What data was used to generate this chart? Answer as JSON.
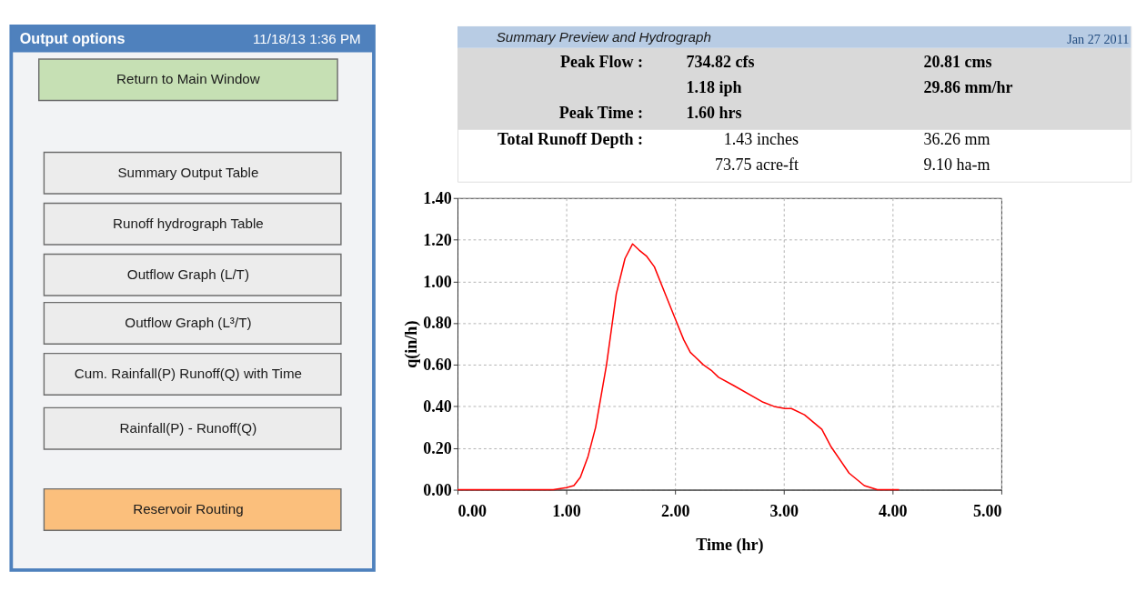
{
  "chart_data": [
    {
      "type": "other",
      "title": "Output options",
      "subtitle": "11/18/13 1:36 PM",
      "categories": [
        "Return to Main Window",
        "Summary Output Table",
        "Runoff hydrograph Table",
        "Outflow Graph (L/T)",
        "Outflow Graph  (L³/T)",
        "Cum. Rainfall(P)  Runoff(Q) with Time",
        "Rainfall(P) - Runoff(Q)",
        "Reservoir Routing"
      ],
      "colors": [
        "#c6e0b4",
        "#ececec",
        "#ececec",
        "#ececec",
        "#ececec",
        "#ececec",
        "#ececec",
        "#fbbf7c"
      ]
    },
    {
      "type": "other",
      "title": "Summary Preview and Hydrograph",
      "subtitle": "Jan 27 2011",
      "annotations": [
        "Peak Flow :",
        "734.82 cfs",
        "20.81 cms",
        "1.18 iph",
        "29.86 mm/hr",
        "Peak Time :",
        "1.60 hrs",
        "Total Runoff Depth :",
        "1.43 inches",
        "36.26 mm",
        "73.75 acre-ft",
        "9.10 ha-m"
      ]
    },
    {
      "type": "line",
      "xlabel": "Time (hr)",
      "ylabel": "q(in/h)",
      "x": [
        0,
        0.88,
        1.0,
        1.07,
        1.13,
        1.2,
        1.27,
        1.37,
        1.46,
        1.54,
        1.61,
        1.67,
        1.74,
        1.81,
        1.91,
        2.01,
        2.08,
        2.14,
        2.26,
        2.34,
        2.4,
        2.54,
        2.81,
        2.91,
        3.01,
        3.07,
        3.19,
        3.35,
        3.43,
        3.6,
        3.74,
        3.86,
        4.06
      ],
      "series": [
        {
          "color": "#ff0000",
          "values": [
            0,
            0,
            0.01,
            0.02,
            0.06,
            0.16,
            0.3,
            0.6,
            0.94,
            1.11,
            1.18,
            1.15,
            1.12,
            1.07,
            0.94,
            0.81,
            0.72,
            0.66,
            0.6,
            0.57,
            0.54,
            0.5,
            0.42,
            0.4,
            0.39,
            0.39,
            0.36,
            0.29,
            0.21,
            0.08,
            0.02,
            0,
            0
          ]
        }
      ],
      "xlim": [
        0,
        5
      ],
      "ylim": [
        0,
        1.4
      ],
      "xticks": [
        {
          "value": 0,
          "label": "0.00"
        },
        {
          "value": 1,
          "label": "1.00"
        },
        {
          "value": 2,
          "label": "2.00"
        },
        {
          "value": 3,
          "label": "3.00"
        },
        {
          "value": 4,
          "label": "4.00"
        },
        {
          "value": 5,
          "label": "5.00"
        }
      ],
      "yticks": [
        {
          "value": 0,
          "label": "0.00"
        },
        {
          "value": 0.2,
          "label": "0.20"
        },
        {
          "value": 0.4,
          "label": "0.40"
        },
        {
          "value": 0.6,
          "label": "0.60"
        },
        {
          "value": 0.8,
          "label": "0.80"
        },
        {
          "value": 1.0,
          "label": "1.00"
        },
        {
          "value": 1.2,
          "label": "1.20"
        },
        {
          "value": 1.4,
          "label": "1.40"
        }
      ],
      "grid": true,
      "marker": "none",
      "line_style": "solid"
    }
  ]
}
